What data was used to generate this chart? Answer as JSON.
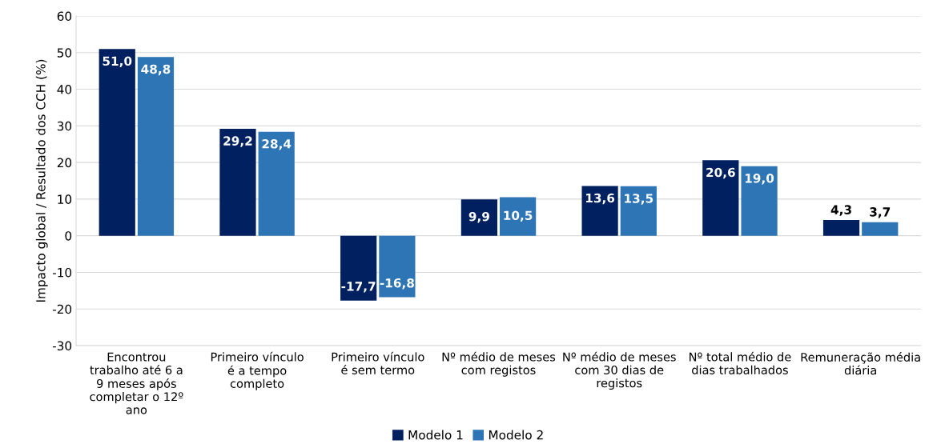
{
  "chart_data": {
    "type": "bar",
    "ylabel": "Impacto global / Resultado dos CCH (%)",
    "categories": [
      "Encontrou trabalho até 6 a 9 meses após completar o 12º ano",
      "Primeiro vínculo é a tempo completo",
      "Primeiro vínculo é sem termo",
      "Nº médio de meses com registos",
      "Nº médio de meses com 30 dias de registos",
      "Nº total médio de dias trabalhados",
      "Remuneração média diária"
    ],
    "series": [
      {
        "name": "Modelo 1",
        "color": "#002060",
        "values": [
          51.0,
          29.2,
          -17.7,
          9.9,
          13.6,
          20.6,
          4.3
        ],
        "value_labels": [
          "51,0",
          "29,2",
          "-17,7",
          "9,9",
          "13,6",
          "20,6",
          "4,3"
        ]
      },
      {
        "name": "Modelo 2",
        "color": "#2e75b6",
        "values": [
          48.8,
          28.4,
          -16.8,
          10.5,
          13.5,
          19.0,
          3.7
        ],
        "value_labels": [
          "48,8",
          "28,4",
          "-16,8",
          "10,5",
          "13,5",
          "19,0",
          "3,7"
        ]
      }
    ],
    "ylim": [
      -30,
      60
    ],
    "yticks": [
      -30,
      -20,
      -10,
      0,
      10,
      20,
      30,
      40,
      50,
      60
    ],
    "grid": "y",
    "legend": "bottom"
  }
}
